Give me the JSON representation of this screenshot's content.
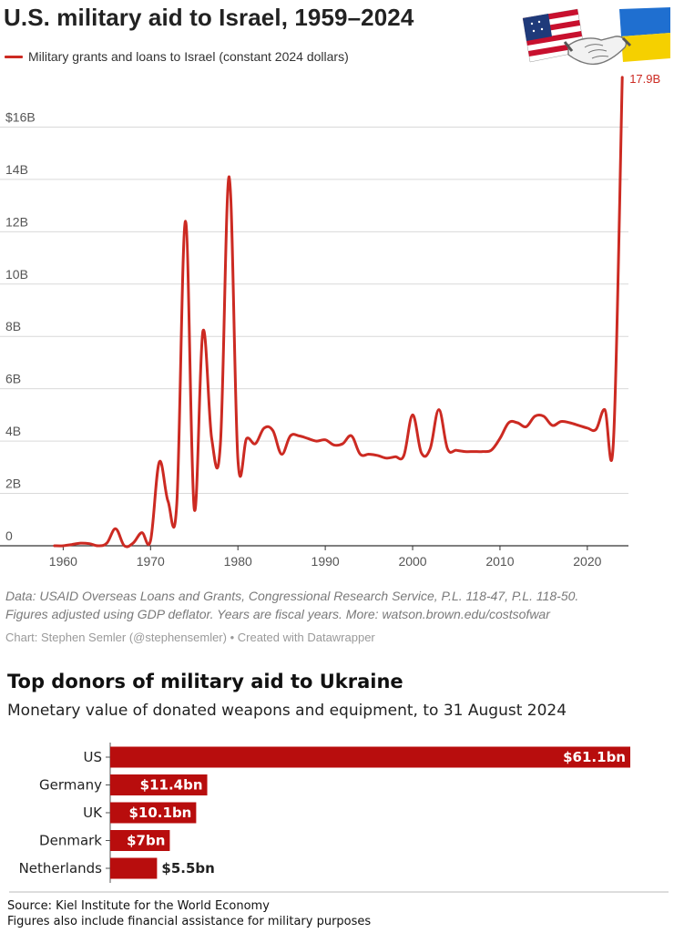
{
  "chart_data": [
    {
      "type": "line",
      "title": "U.S. military aid to Israel, 1959–2024",
      "series": [
        {
          "name": "Military grants and loans to Israel (constant 2024 dollars)",
          "color": "#cc2a22",
          "x": [
            1959,
            1960,
            1961,
            1962,
            1963,
            1964,
            1965,
            1966,
            1967,
            1968,
            1969,
            1970,
            1971,
            1972,
            1973,
            1974,
            1975,
            1976,
            1977,
            1978,
            1979,
            1980,
            1981,
            1982,
            1983,
            1984,
            1985,
            1986,
            1987,
            1988,
            1989,
            1990,
            1991,
            1992,
            1993,
            1994,
            1995,
            1996,
            1997,
            1998,
            1999,
            2000,
            2001,
            2002,
            2003,
            2004,
            2005,
            2006,
            2007,
            2008,
            2009,
            2010,
            2011,
            2012,
            2013,
            2014,
            2015,
            2016,
            2017,
            2018,
            2019,
            2020,
            2021,
            2022,
            2023,
            2024
          ],
          "values": [
            0,
            0,
            0.05,
            0.1,
            0.08,
            0,
            0.1,
            0.65,
            0,
            0.1,
            0.5,
            0.2,
            3.2,
            1.7,
            1.6,
            12.4,
            1.4,
            8.2,
            4.1,
            3.9,
            14.1,
            3.3,
            4.1,
            3.9,
            4.5,
            4.4,
            3.5,
            4.2,
            4.2,
            4.1,
            4.0,
            4.05,
            3.85,
            3.9,
            4.2,
            3.5,
            3.5,
            3.45,
            3.35,
            3.4,
            3.45,
            5.0,
            3.55,
            3.7,
            5.2,
            3.7,
            3.65,
            3.6,
            3.6,
            3.6,
            3.65,
            4.1,
            4.7,
            4.7,
            4.55,
            4.95,
            4.95,
            4.6,
            4.75,
            4.7,
            4.6,
            4.5,
            4.45,
            5.2,
            4.05,
            17.9
          ]
        }
      ],
      "end_label": "17.9B",
      "y_ticks": [
        "0",
        "2B",
        "4B",
        "6B",
        "8B",
        "10B",
        "12B",
        "14B",
        "$16B"
      ],
      "y_tick_values": [
        0,
        2,
        4,
        6,
        8,
        10,
        12,
        14,
        16
      ],
      "x_ticks": [
        "1960",
        "1970",
        "1980",
        "1990",
        "2000",
        "2010",
        "2020"
      ],
      "x_tick_values": [
        1960,
        1970,
        1980,
        1990,
        2000,
        2010,
        2020
      ],
      "xlim": [
        1958.5,
        2024.5
      ],
      "ylim": [
        0,
        18
      ],
      "grid": true,
      "legend_position": "top-left",
      "xlabel": "",
      "ylabel": ""
    },
    {
      "type": "bar",
      "orientation": "horizontal",
      "title": "Top donors of military aid to Ukraine",
      "subtitle": "Monetary value of donated weapons and equipment, to 31 August 2024",
      "categories": [
        "US",
        "Germany",
        "UK",
        "Denmark",
        "Netherlands"
      ],
      "values": [
        61.1,
        11.4,
        10.1,
        7.0,
        5.5
      ],
      "value_labels": [
        "$61.1bn",
        "$11.4bn",
        "$10.1bn",
        "$7bn",
        "$5.5bn"
      ],
      "bar_color": "#b80d0d",
      "xlabel": "",
      "ylabel": ""
    }
  ],
  "top_chart": {
    "source_lines": [
      "Data: USAID Overseas Loans and Grants, Congressional Research Service, P.L. 118-47, P.L. 118-50.",
      "Figures adjusted using GDP deflator. Years are fiscal years. More: watson.brown.edu/costsofwar"
    ],
    "credit": "Chart: Stephen Semler (@stephensemler) • Created with Datawrapper"
  },
  "bottom_chart": {
    "notes": [
      "Source: Kiel Institute for the World Economy",
      "Figures also include financial assistance for military purposes"
    ]
  },
  "emblem": {
    "icon": "handshake-flags-icon",
    "colors": {
      "us_red": "#c8102e",
      "us_blue": "#1f3a7a",
      "ua_blue": "#1f6fd0",
      "ua_yellow": "#f5d000"
    }
  }
}
